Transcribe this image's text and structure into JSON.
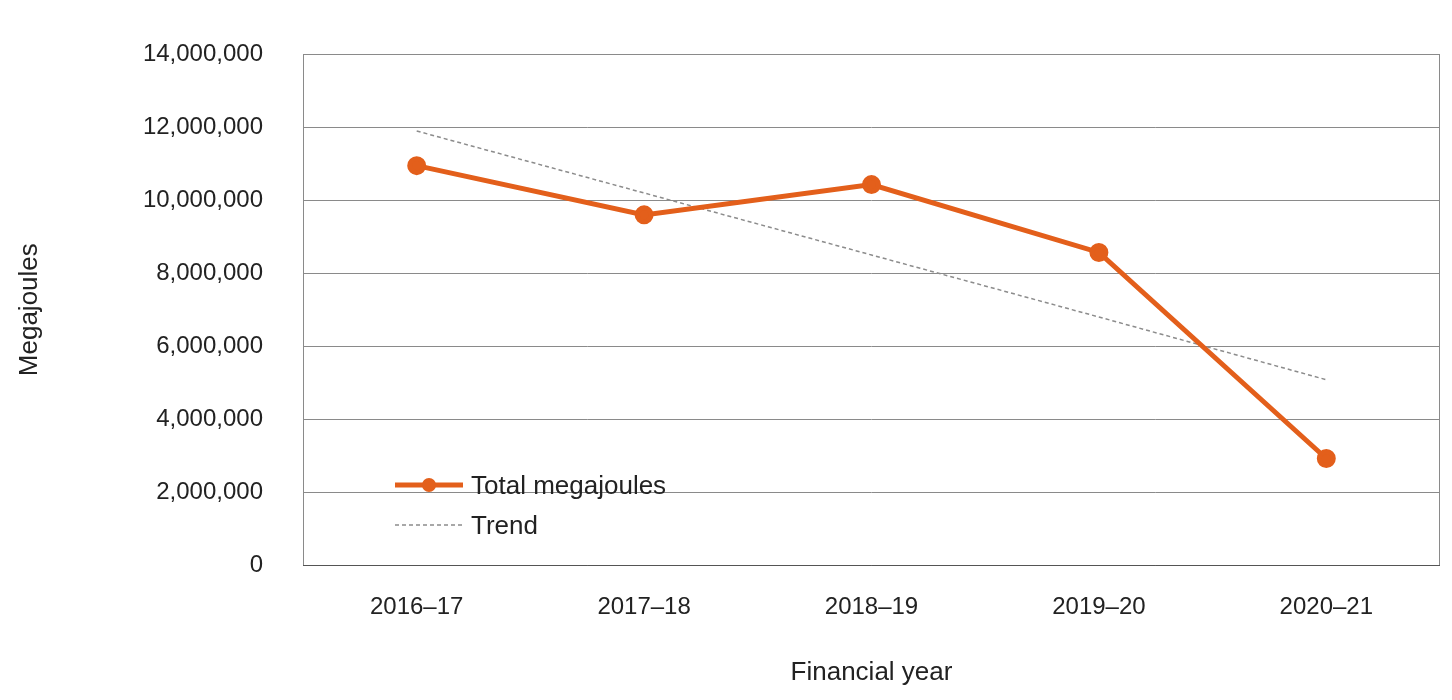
{
  "chart_data": {
    "type": "line",
    "x_label": "Financial year",
    "y_label": "Megajoules",
    "categories": [
      "2016–17",
      "2017–18",
      "2018–19",
      "2019–20",
      "2020–21"
    ],
    "series": [
      {
        "name": "Total megajoules",
        "color": "#e35f1b",
        "marker": "circle",
        "line_style": "solid",
        "values": [
          10950000,
          9600000,
          10430000,
          8570000,
          2920000
        ]
      },
      {
        "name": "Trend",
        "color": "#8c8c8c",
        "marker": "none",
        "line_style": "dashed",
        "values": [
          11900000,
          10200000,
          8500000,
          6800000,
          5080000
        ]
      }
    ],
    "ylim": [
      0,
      14000000
    ],
    "yticks": [
      0,
      {
        "value": 2000000,
        "label": "2,000,000"
      },
      {
        "value": 4000000,
        "label": "4,000,000"
      },
      {
        "value": 6000000,
        "label": "6,000,000"
      },
      {
        "value": 8000000,
        "label": "8,000,000"
      },
      {
        "value": 10000000,
        "label": "10,000,000"
      },
      {
        "value": 12000000,
        "label": "12,000,000"
      },
      {
        "value": 14000000,
        "label": "14,000,000"
      }
    ],
    "grid": true,
    "legend": "lower left"
  }
}
